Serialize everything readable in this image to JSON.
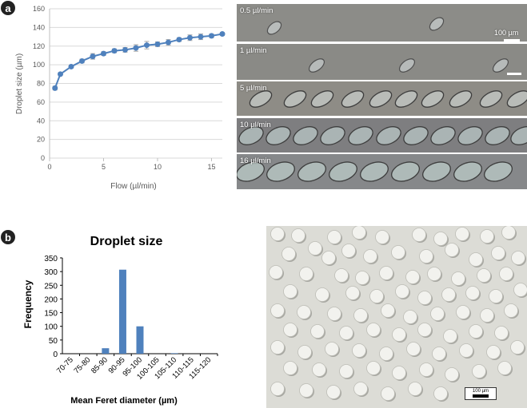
{
  "panels": {
    "a": "a",
    "b": "b"
  },
  "chart_data": [
    {
      "type": "line",
      "title": "",
      "xlabel": "Flow (µl/min)",
      "ylabel": "Droplet size (µm)",
      "xlim": [
        0,
        16
      ],
      "ylim": [
        0,
        160
      ],
      "xticks": [
        "0",
        "5",
        "10",
        "15"
      ],
      "yticks": [
        "0",
        "20",
        "40",
        "60",
        "80",
        "100",
        "120",
        "140",
        "160"
      ],
      "grid": "horizontal",
      "color": "#4f81bd",
      "x": [
        0.5,
        1,
        2,
        3,
        4,
        5,
        6,
        7,
        8,
        9,
        10,
        11,
        12,
        13,
        14,
        15,
        16
      ],
      "y": [
        75,
        90,
        98,
        104,
        109,
        112,
        115,
        116,
        118,
        121,
        122,
        124,
        127,
        129,
        130,
        131,
        133
      ],
      "error": [
        2,
        1.5,
        1.5,
        2,
        3,
        2,
        2,
        2.5,
        3.5,
        4,
        2.5,
        3,
        2,
        3,
        3,
        2,
        1.5
      ]
    },
    {
      "type": "bar",
      "title": "Droplet size",
      "xlabel": "Mean Feret diameter (µm)",
      "ylabel": "Frequency",
      "ylim": [
        0,
        350
      ],
      "yticks": [
        "0",
        "50",
        "100",
        "150",
        "200",
        "250",
        "300",
        "350"
      ],
      "categories": [
        "70-75",
        "75-80",
        "85-90",
        "90-95",
        "95-100",
        "100-105",
        "105-110",
        "110-115",
        "115-120"
      ],
      "values": [
        0,
        0,
        20,
        307,
        100,
        0,
        2,
        0,
        0
      ],
      "color": "#4f81bd"
    }
  ],
  "strips": [
    {
      "label": "0.5 µl/min"
    },
    {
      "label": "1 µl/min"
    },
    {
      "label": "5 µl/min"
    },
    {
      "label": "10 µl/min"
    },
    {
      "label": "16 µl/min"
    }
  ],
  "strip_scalebar": "100 µm",
  "micro_scalebar": "100 µm"
}
